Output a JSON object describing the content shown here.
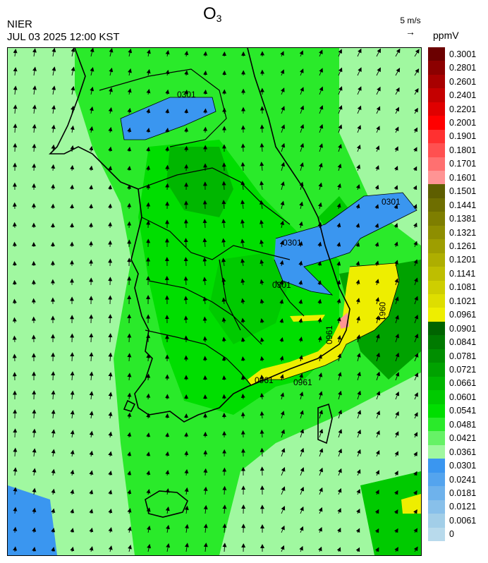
{
  "header": {
    "title_main": "O",
    "title_sub": "3",
    "org": "NIER",
    "datetime": "JUL 03 2025 12:00 KST",
    "vector_label": "5 m/s",
    "vector_arrow": "→",
    "unit": "ppmV"
  },
  "colorbar": [
    {
      "label": "0.3001",
      "color": "#6b0000"
    },
    {
      "label": "0.2801",
      "color": "#8c0000"
    },
    {
      "label": "0.2601",
      "color": "#a80000"
    },
    {
      "label": "0.2401",
      "color": "#c40000"
    },
    {
      "label": "0.2201",
      "color": "#e00000"
    },
    {
      "label": "0.2001",
      "color": "#ff0000"
    },
    {
      "label": "0.1901",
      "color": "#ff3030"
    },
    {
      "label": "0.1801",
      "color": "#ff5050"
    },
    {
      "label": "0.1701",
      "color": "#ff7070"
    },
    {
      "label": "0.1601",
      "color": "#ff9494"
    },
    {
      "label": "0.1501",
      "color": "#5e5e00"
    },
    {
      "label": "0.1441",
      "color": "#6e6e00"
    },
    {
      "label": "0.1381",
      "color": "#7e7e00"
    },
    {
      "label": "0.1321",
      "color": "#8e8e00"
    },
    {
      "label": "0.1261",
      "color": "#9e9e00"
    },
    {
      "label": "0.1201",
      "color": "#aeae00"
    },
    {
      "label": "0.1141",
      "color": "#bebe00"
    },
    {
      "label": "0.1081",
      "color": "#cece00"
    },
    {
      "label": "0.1021",
      "color": "#dede00"
    },
    {
      "label": "0.0961",
      "color": "#eeee00"
    },
    {
      "label": "0.0901",
      "color": "#006400"
    },
    {
      "label": "0.0841",
      "color": "#007a00"
    },
    {
      "label": "0.0781",
      "color": "#008e00"
    },
    {
      "label": "0.0721",
      "color": "#00a200"
    },
    {
      "label": "0.0661",
      "color": "#00b600"
    },
    {
      "label": "0.0601",
      "color": "#00ca00"
    },
    {
      "label": "0.0541",
      "color": "#00de00"
    },
    {
      "label": "0.0481",
      "color": "#2aea2a"
    },
    {
      "label": "0.0421",
      "color": "#66f266"
    },
    {
      "label": "0.0361",
      "color": "#a0f8a0"
    },
    {
      "label": "0.0301",
      "color": "#3a96f0"
    },
    {
      "label": "0.0241",
      "color": "#54a4ee"
    },
    {
      "label": "0.0181",
      "color": "#6eb2ec"
    },
    {
      "label": "0.0121",
      "color": "#88c0ea"
    },
    {
      "label": "0.0061",
      "color": "#a2cee8"
    },
    {
      "label": "0",
      "color": "#b8daec"
    }
  ],
  "map": {
    "contour_labels": [
      "0301",
      "0301",
      "0301",
      "0301",
      "0961",
      "0961",
      "0961",
      "0961"
    ]
  }
}
